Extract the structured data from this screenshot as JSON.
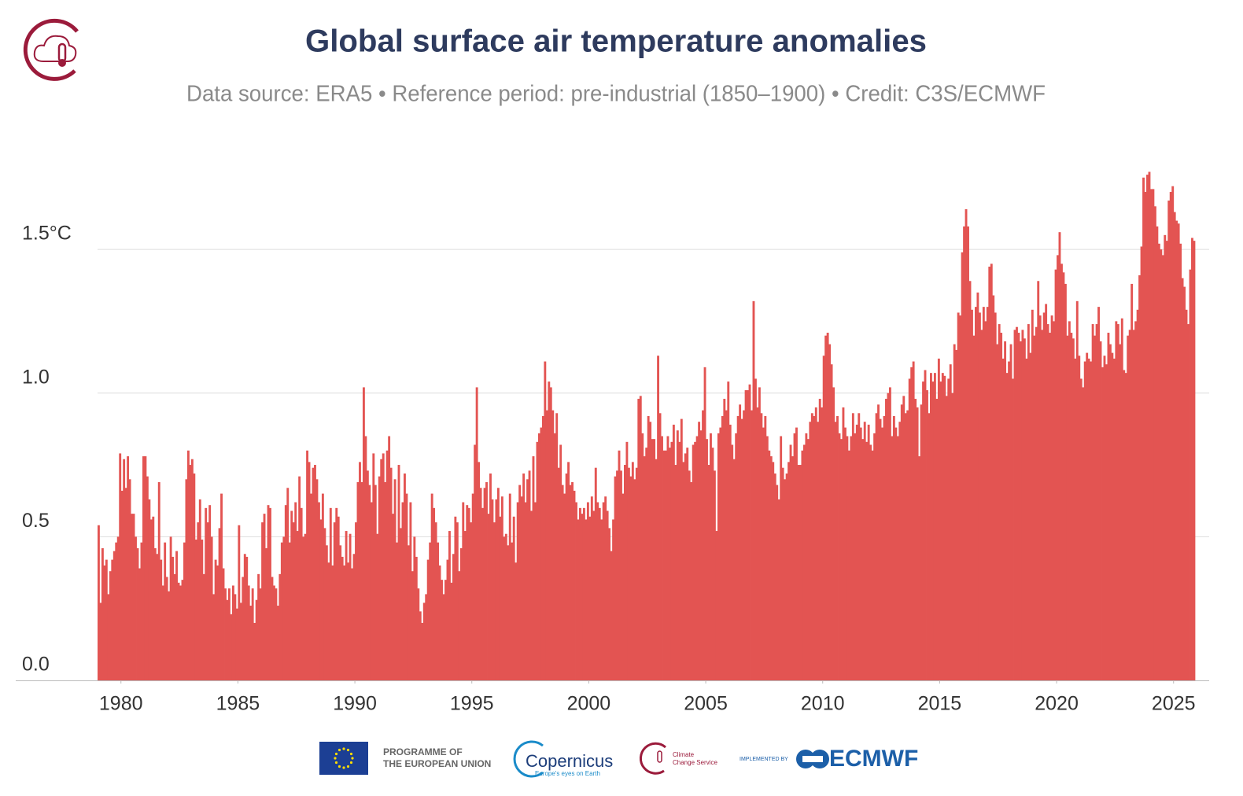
{
  "chart_data": {
    "type": "bar",
    "title": "Global surface air temperature anomalies",
    "subtitle": "Data source: ERA5 • Reference period: pre-industrial (1850–1900) • Credit: C3S/ECMWF",
    "color": "#e35452",
    "grid": true,
    "xlim": [
      1979,
      2025.917
    ],
    "xticks": [
      1980,
      1985,
      1990,
      1995,
      2000,
      2005,
      2010,
      2015,
      2020,
      2025
    ],
    "ylim": [
      0,
      1.8
    ],
    "yticks": [
      {
        "value": 0,
        "label": "0.0"
      },
      0.5,
      {
        "value": 1,
        "label": "1.0"
      },
      {
        "value": 1.5,
        "label": "1.5°C"
      }
    ],
    "x": [
      1979,
      1979.083,
      1979.167,
      1979.25,
      1979.333,
      1979.417,
      1979.5,
      1979.583,
      1979.667,
      1979.75,
      1979.833,
      1979.917,
      1980,
      1980.083,
      1980.167,
      1980.25,
      1980.333,
      1980.417,
      1980.5,
      1980.583,
      1980.667,
      1980.75,
      1980.833,
      1980.917,
      1981,
      1981.083,
      1981.167,
      1981.25,
      1981.333,
      1981.417,
      1981.5,
      1981.583,
      1981.667,
      1981.75,
      1981.833,
      1981.917,
      1982,
      1982.083,
      1982.167,
      1982.25,
      1982.333,
      1982.417,
      1982.5,
      1982.583,
      1982.667,
      1982.75,
      1982.833,
      1982.917,
      1983,
      1983.083,
      1983.167,
      1983.25,
      1983.333,
      1983.417,
      1983.5,
      1983.583,
      1983.667,
      1983.75,
      1983.833,
      1983.917,
      1984,
      1984.083,
      1984.167,
      1984.25,
      1984.333,
      1984.417,
      1984.5,
      1984.583,
      1984.667,
      1984.75,
      1984.833,
      1984.917,
      1985,
      1985.083,
      1985.167,
      1985.25,
      1985.333,
      1985.417,
      1985.5,
      1985.583,
      1985.667,
      1985.75,
      1985.833,
      1985.917,
      1986,
      1986.083,
      1986.167,
      1986.25,
      1986.333,
      1986.417,
      1986.5,
      1986.583,
      1986.667,
      1986.75,
      1986.833,
      1986.917,
      1987,
      1987.083,
      1987.167,
      1987.25,
      1987.333,
      1987.417,
      1987.5,
      1987.583,
      1987.667,
      1987.75,
      1987.833,
      1987.917,
      1988,
      1988.083,
      1988.167,
      1988.25,
      1988.333,
      1988.417,
      1988.5,
      1988.583,
      1988.667,
      1988.75,
      1988.833,
      1988.917,
      1989,
      1989.083,
      1989.167,
      1989.25,
      1989.333,
      1989.417,
      1989.5,
      1989.583,
      1989.667,
      1989.75,
      1989.833,
      1989.917,
      1990,
      1990.083,
      1990.167,
      1990.25,
      1990.333,
      1990.417,
      1990.5,
      1990.583,
      1990.667,
      1990.75,
      1990.833,
      1990.917,
      1991,
      1991.083,
      1991.167,
      1991.25,
      1991.333,
      1991.417,
      1991.5,
      1991.583,
      1991.667,
      1991.75,
      1991.833,
      1991.917,
      1992,
      1992.083,
      1992.167,
      1992.25,
      1992.333,
      1992.417,
      1992.5,
      1992.583,
      1992.667,
      1992.75,
      1992.833,
      1992.917,
      1993,
      1993.083,
      1993.167,
      1993.25,
      1993.333,
      1993.417,
      1993.5,
      1993.583,
      1993.667,
      1993.75,
      1993.833,
      1993.917,
      1994,
      1994.083,
      1994.167,
      1994.25,
      1994.333,
      1994.417,
      1994.5,
      1994.583,
      1994.667,
      1994.75,
      1994.833,
      1994.917,
      1995,
      1995.083,
      1995.167,
      1995.25,
      1995.333,
      1995.417,
      1995.5,
      1995.583,
      1995.667,
      1995.75,
      1995.833,
      1995.917,
      1996,
      1996.083,
      1996.167,
      1996.25,
      1996.333,
      1996.417,
      1996.5,
      1996.583,
      1996.667,
      1996.75,
      1996.833,
      1996.917,
      1997,
      1997.083,
      1997.167,
      1997.25,
      1997.333,
      1997.417,
      1997.5,
      1997.583,
      1997.667,
      1997.75,
      1997.833,
      1997.917,
      1998,
      1998.083,
      1998.167,
      1998.25,
      1998.333,
      1998.417,
      1998.5,
      1998.583,
      1998.667,
      1998.75,
      1998.833,
      1998.917,
      1999,
      1999.083,
      1999.167,
      1999.25,
      1999.333,
      1999.417,
      1999.5,
      1999.583,
      1999.667,
      1999.75,
      1999.833,
      1999.917,
      2000,
      2000.083,
      2000.167,
      2000.25,
      2000.333,
      2000.417,
      2000.5,
      2000.583,
      2000.667,
      2000.75,
      2000.833,
      2000.917,
      2001,
      2001.083,
      2001.167,
      2001.25,
      2001.333,
      2001.417,
      2001.5,
      2001.583,
      2001.667,
      2001.75,
      2001.833,
      2001.917,
      2002,
      2002.083,
      2002.167,
      2002.25,
      2002.333,
      2002.417,
      2002.5,
      2002.583,
      2002.667,
      2002.75,
      2002.833,
      2002.917,
      2003,
      2003.083,
      2003.167,
      2003.25,
      2003.333,
      2003.417,
      2003.5,
      2003.583,
      2003.667,
      2003.75,
      2003.833,
      2003.917,
      2004,
      2004.083,
      2004.167,
      2004.25,
      2004.333,
      2004.417,
      2004.5,
      2004.583,
      2004.667,
      2004.75,
      2004.833,
      2004.917,
      2005,
      2005.083,
      2005.167,
      2005.25,
      2005.333,
      2005.417,
      2005.5,
      2005.583,
      2005.667,
      2005.75,
      2005.833,
      2005.917,
      2006,
      2006.083,
      2006.167,
      2006.25,
      2006.333,
      2006.417,
      2006.5,
      2006.583,
      2006.667,
      2006.75,
      2006.833,
      2006.917,
      2007,
      2007.083,
      2007.167,
      2007.25,
      2007.333,
      2007.417,
      2007.5,
      2007.583,
      2007.667,
      2007.75,
      2007.833,
      2007.917,
      2008,
      2008.083,
      2008.167,
      2008.25,
      2008.333,
      2008.417,
      2008.5,
      2008.583,
      2008.667,
      2008.75,
      2008.833,
      2008.917,
      2009,
      2009.083,
      2009.167,
      2009.25,
      2009.333,
      2009.417,
      2009.5,
      2009.583,
      2009.667,
      2009.75,
      2009.833,
      2009.917,
      2010,
      2010.083,
      2010.167,
      2010.25,
      2010.333,
      2010.417,
      2010.5,
      2010.583,
      2010.667,
      2010.75,
      2010.833,
      2010.917,
      2011,
      2011.083,
      2011.167,
      2011.25,
      2011.333,
      2011.417,
      2011.5,
      2011.583,
      2011.667,
      2011.75,
      2011.833,
      2011.917,
      2012,
      2012.083,
      2012.167,
      2012.25,
      2012.333,
      2012.417,
      2012.5,
      2012.583,
      2012.667,
      2012.75,
      2012.833,
      2012.917,
      2013,
      2013.083,
      2013.167,
      2013.25,
      2013.333,
      2013.417,
      2013.5,
      2013.583,
      2013.667,
      2013.75,
      2013.833,
      2013.917,
      2014,
      2014.083,
      2014.167,
      2014.25,
      2014.333,
      2014.417,
      2014.5,
      2014.583,
      2014.667,
      2014.75,
      2014.833,
      2014.917,
      2015,
      2015.083,
      2015.167,
      2015.25,
      2015.333,
      2015.417,
      2015.5,
      2015.583,
      2015.667,
      2015.75,
      2015.833,
      2015.917,
      2016,
      2016.083,
      2016.167,
      2016.25,
      2016.333,
      2016.417,
      2016.5,
      2016.583,
      2016.667,
      2016.75,
      2016.833,
      2016.917,
      2017,
      2017.083,
      2017.167,
      2017.25,
      2017.333,
      2017.417,
      2017.5,
      2017.583,
      2017.667,
      2017.75,
      2017.833,
      2017.917,
      2018,
      2018.083,
      2018.167,
      2018.25,
      2018.333,
      2018.417,
      2018.5,
      2018.583,
      2018.667,
      2018.75,
      2018.833,
      2018.917,
      2019,
      2019.083,
      2019.167,
      2019.25,
      2019.333,
      2019.417,
      2019.5,
      2019.583,
      2019.667,
      2019.75,
      2019.833,
      2019.917,
      2020,
      2020.083,
      2020.167,
      2020.25,
      2020.333,
      2020.417,
      2020.5,
      2020.583,
      2020.667,
      2020.75,
      2020.833,
      2020.917,
      2021,
      2021.083,
      2021.167,
      2021.25,
      2021.333,
      2021.417,
      2021.5,
      2021.583,
      2021.667,
      2021.75,
      2021.833,
      2021.917,
      2022,
      2022.083,
      2022.167,
      2022.25,
      2022.333,
      2022.417,
      2022.5,
      2022.583,
      2022.667,
      2022.75,
      2022.833,
      2022.917,
      2023,
      2023.083,
      2023.167,
      2023.25,
      2023.333,
      2023.417,
      2023.5,
      2023.583,
      2023.667,
      2023.75,
      2023.833,
      2023.917,
      2024,
      2024.083,
      2024.167,
      2024.25,
      2024.333,
      2024.417,
      2024.5,
      2024.583,
      2024.667,
      2024.75,
      2024.833,
      2024.917,
      2025,
      2025.083,
      2025.167,
      2025.25,
      2025.333,
      2025.417,
      2025.5,
      2025.583,
      2025.667,
      2025.75,
      2025.833
    ],
    "values": [
      0.54,
      0.27,
      0.46,
      0.4,
      0.42,
      0.3,
      0.38,
      0.42,
      0.45,
      0.48,
      0.5,
      0.79,
      0.66,
      0.77,
      0.67,
      0.78,
      0.7,
      0.58,
      0.58,
      0.5,
      0.46,
      0.39,
      0.48,
      0.78,
      0.78,
      0.71,
      0.63,
      0.56,
      0.57,
      0.46,
      0.44,
      0.69,
      0.42,
      0.33,
      0.48,
      0.36,
      0.31,
      0.5,
      0.43,
      0.37,
      0.45,
      0.34,
      0.33,
      0.35,
      0.48,
      0.7,
      0.8,
      0.75,
      0.77,
      0.72,
      0.49,
      0.55,
      0.63,
      0.49,
      0.37,
      0.6,
      0.55,
      0.61,
      0.5,
      0.3,
      0.42,
      0.4,
      0.53,
      0.65,
      0.39,
      0.32,
      0.28,
      0.32,
      0.23,
      0.33,
      0.3,
      0.25,
      0.54,
      0.27,
      0.36,
      0.44,
      0.43,
      0.33,
      0.26,
      0.32,
      0.2,
      0.28,
      0.37,
      0.32,
      0.55,
      0.58,
      0.46,
      0.61,
      0.6,
      0.36,
      0.33,
      0.32,
      0.26,
      0.37,
      0.48,
      0.5,
      0.61,
      0.67,
      0.48,
      0.59,
      0.55,
      0.62,
      0.52,
      0.71,
      0.6,
      0.5,
      0.51,
      0.8,
      0.76,
      0.65,
      0.74,
      0.75,
      0.7,
      0.62,
      0.56,
      0.65,
      0.53,
      0.47,
      0.41,
      0.6,
      0.4,
      0.55,
      0.6,
      0.57,
      0.47,
      0.43,
      0.4,
      0.52,
      0.41,
      0.51,
      0.39,
      0.44,
      0.55,
      0.69,
      0.76,
      0.69,
      1.02,
      0.85,
      0.73,
      0.68,
      0.62,
      0.79,
      0.68,
      0.51,
      0.71,
      0.77,
      0.79,
      0.69,
      0.8,
      0.85,
      0.74,
      0.58,
      0.7,
      0.48,
      0.75,
      0.53,
      0.62,
      0.72,
      0.65,
      0.47,
      0.62,
      0.38,
      0.5,
      0.43,
      0.32,
      0.24,
      0.2,
      0.27,
      0.3,
      0.42,
      0.48,
      0.65,
      0.6,
      0.55,
      0.48,
      0.4,
      0.35,
      0.3,
      0.35,
      0.42,
      0.52,
      0.34,
      0.44,
      0.57,
      0.55,
      0.38,
      0.46,
      0.62,
      0.52,
      0.61,
      0.6,
      0.55,
      0.65,
      0.82,
      1.02,
      0.76,
      0.67,
      0.6,
      0.67,
      0.69,
      0.58,
      0.72,
      0.63,
      0.55,
      0.63,
      0.67,
      0.57,
      0.64,
      0.5,
      0.51,
      0.47,
      0.65,
      0.48,
      0.57,
      0.41,
      0.62,
      0.68,
      0.64,
      0.72,
      0.62,
      0.7,
      0.73,
      0.59,
      0.78,
      0.62,
      0.83,
      0.86,
      0.88,
      0.92,
      1.11,
      0.94,
      1.04,
      1.02,
      0.94,
      0.86,
      0.93,
      0.74,
      0.82,
      0.68,
      0.65,
      0.72,
      0.76,
      0.68,
      0.69,
      0.66,
      0.62,
      0.56,
      0.6,
      0.58,
      0.6,
      0.56,
      0.62,
      0.57,
      0.64,
      0.59,
      0.74,
      0.62,
      0.6,
      0.56,
      0.62,
      0.64,
      0.59,
      0.53,
      0.45,
      0.56,
      0.71,
      0.73,
      0.8,
      0.73,
      0.65,
      0.75,
      0.83,
      0.74,
      0.71,
      0.76,
      0.7,
      0.74,
      0.98,
      0.99,
      0.86,
      0.78,
      0.81,
      0.92,
      0.9,
      0.84,
      0.84,
      0.77,
      1.13,
      0.93,
      0.85,
      0.8,
      0.8,
      0.85,
      0.81,
      0.83,
      0.89,
      0.75,
      0.87,
      0.83,
      0.91,
      0.76,
      0.79,
      0.81,
      0.73,
      0.69,
      0.82,
      0.83,
      0.85,
      0.9,
      0.87,
      0.94,
      1.09,
      0.84,
      0.75,
      0.86,
      0.81,
      0.73,
      0.52,
      0.86,
      0.88,
      0.92,
      0.98,
      0.94,
      1.04,
      0.89,
      0.82,
      0.77,
      0.86,
      0.92,
      0.96,
      0.91,
      0.94,
      1.01,
      1.01,
      1.03,
      0.94,
      1.32,
      1.05,
      0.95,
      1.02,
      0.93,
      0.88,
      0.92,
      0.85,
      0.8,
      0.78,
      0.76,
      0.72,
      0.68,
      0.63,
      0.85,
      0.74,
      0.7,
      0.72,
      0.76,
      0.82,
      0.78,
      0.86,
      0.88,
      0.75,
      0.75,
      0.8,
      0.82,
      0.86,
      0.84,
      0.9,
      0.93,
      0.92,
      0.95,
      0.9,
      0.98,
      0.95,
      1.13,
      1.2,
      1.21,
      1.17,
      1.1,
      1.02,
      0.9,
      0.92,
      0.86,
      0.84,
      0.95,
      0.88,
      0.85,
      0.8,
      0.85,
      0.93,
      0.86,
      0.89,
      0.93,
      0.88,
      0.84,
      0.9,
      0.83,
      0.89,
      0.82,
      0.8,
      0.86,
      0.93,
      0.96,
      0.91,
      0.88,
      0.92,
      0.98,
      1.0,
      1.02,
      0.85,
      0.92,
      0.88,
      0.85,
      0.9,
      0.96,
      0.99,
      0.93,
      0.94,
      1.05,
      1.09,
      1.11,
      0.98,
      0.95,
      0.78,
      0.96,
      1.04,
      1.08,
      1.01,
      0.93,
      1.07,
      1.04,
      1.07,
      0.98,
      1.12,
      1.04,
      1.07,
      1.06,
      0.99,
      1.05,
      1.1,
      1.0,
      1.17,
      1.15,
      1.28,
      1.27,
      1.49,
      1.58,
      1.64,
      1.58,
      1.39,
      1.29,
      1.2,
      1.3,
      1.35,
      1.28,
      1.22,
      1.3,
      1.25,
      1.3,
      1.44,
      1.45,
      1.34,
      1.28,
      1.17,
      1.24,
      1.21,
      1.12,
      1.18,
      1.07,
      1.11,
      1.17,
      1.05,
      1.22,
      1.23,
      1.21,
      1.18,
      1.22,
      1.19,
      1.12,
      1.24,
      1.14,
      1.29,
      1.2,
      1.23,
      1.39,
      1.27,
      1.22,
      1.28,
      1.31,
      1.24,
      1.21,
      1.27,
      1.25,
      1.43,
      1.48,
      1.56,
      1.45,
      1.42,
      1.38,
      1.2,
      1.25,
      1.21,
      1.19,
      1.12,
      1.32,
      1.13,
      1.05,
      1.02,
      1.11,
      1.14,
      1.12,
      1.11,
      1.24,
      1.2,
      1.24,
      1.3,
      1.18,
      1.09,
      1.13,
      1.1,
      1.21,
      1.17,
      1.14,
      1.12,
      1.25,
      1.24,
      1.17,
      1.26,
      1.08,
      1.07,
      1.2,
      1.22,
      1.38,
      1.22,
      1.25,
      1.29,
      1.41,
      1.51,
      1.75,
      1.7,
      1.76,
      1.77,
      1.71,
      1.71,
      1.65,
      1.58,
      1.52,
      1.5,
      1.48,
      1.55,
      1.53,
      1.67,
      1.7,
      1.72,
      1.63,
      1.6,
      1.59,
      1.52,
      1.4,
      1.37,
      1.29,
      1.24,
      1.43,
      1.54,
      1.53
    ]
  },
  "logos": {
    "eu": [
      "PROGRAMME OF",
      "THE EUROPEAN UNION"
    ],
    "copernicus": [
      "Copernicus",
      "Europe's eyes on Earth"
    ],
    "c3s": [
      "Climate",
      "Change Service"
    ],
    "ecmwf": [
      "IMPLEMENTED BY",
      "ECMWF"
    ]
  }
}
